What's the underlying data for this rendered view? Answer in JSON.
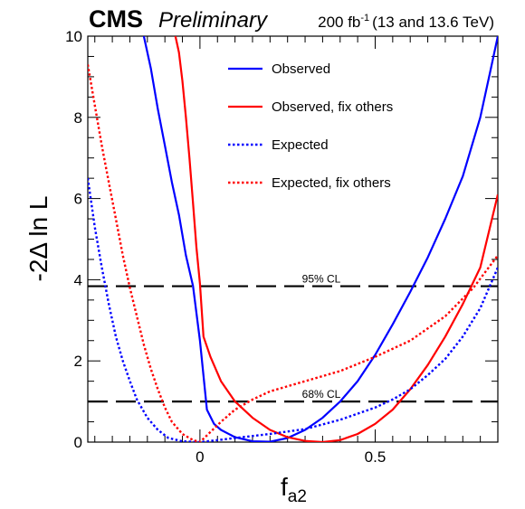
{
  "header": {
    "experiment": "CMS",
    "status": "Preliminary",
    "lumi_value": "200 fb",
    "lumi_exponent": "-1",
    "lumi_energy": "(13 and 13.6 TeV)"
  },
  "chart_data": {
    "type": "line",
    "xlabel_main": "f",
    "xlabel_sub": "a2",
    "ylabel": "-2Δ ln L",
    "xlim": [
      -0.32,
      0.85
    ],
    "ylim": [
      0,
      10
    ],
    "x_ticks": [
      {
        "value": 0,
        "label": "0"
      },
      {
        "value": 0.5,
        "label": "0.5"
      }
    ],
    "y_ticks": [
      {
        "value": 0,
        "label": "0"
      },
      {
        "value": 2,
        "label": "2"
      },
      {
        "value": 4,
        "label": "4"
      },
      {
        "value": 6,
        "label": "6"
      },
      {
        "value": 8,
        "label": "8"
      },
      {
        "value": 10,
        "label": "10"
      }
    ],
    "legend_placement": "top-center",
    "reference_lines": [
      {
        "y": 3.84,
        "label": "95% CL"
      },
      {
        "y": 1.0,
        "label": "68% CL"
      }
    ],
    "series": [
      {
        "name": "Observed",
        "color": "#0000ff",
        "style": "solid",
        "points": [
          [
            -0.16,
            10
          ],
          [
            -0.14,
            9.2
          ],
          [
            -0.12,
            8.2
          ],
          [
            -0.1,
            7.3
          ],
          [
            -0.08,
            6.4
          ],
          [
            -0.06,
            5.6
          ],
          [
            -0.04,
            4.6
          ],
          [
            -0.02,
            3.85
          ],
          [
            0,
            2.5
          ],
          [
            0.02,
            0.8
          ],
          [
            0.04,
            0.45
          ],
          [
            0.06,
            0.3
          ],
          [
            0.1,
            0.12
          ],
          [
            0.15,
            0.02
          ],
          [
            0.2,
            0.01
          ],
          [
            0.25,
            0.1
          ],
          [
            0.3,
            0.3
          ],
          [
            0.35,
            0.6
          ],
          [
            0.4,
            1.0
          ],
          [
            0.45,
            1.5
          ],
          [
            0.5,
            2.15
          ],
          [
            0.55,
            2.9
          ],
          [
            0.6,
            3.7
          ],
          [
            0.65,
            4.55
          ],
          [
            0.7,
            5.5
          ],
          [
            0.75,
            6.55
          ],
          [
            0.8,
            8.0
          ],
          [
            0.83,
            9.2
          ],
          [
            0.85,
            10
          ]
        ]
      },
      {
        "name": "Observed, fix others",
        "color": "#ff0000",
        "style": "solid",
        "points": [
          [
            -0.07,
            10
          ],
          [
            -0.06,
            9.6
          ],
          [
            -0.05,
            8.9
          ],
          [
            -0.04,
            8.0
          ],
          [
            -0.03,
            7.0
          ],
          [
            -0.02,
            5.9
          ],
          [
            -0.01,
            4.8
          ],
          [
            0,
            3.9
          ],
          [
            0.01,
            2.6
          ],
          [
            0.03,
            2.1
          ],
          [
            0.06,
            1.5
          ],
          [
            0.1,
            1.0
          ],
          [
            0.15,
            0.6
          ],
          [
            0.2,
            0.3
          ],
          [
            0.25,
            0.12
          ],
          [
            0.3,
            0.03
          ],
          [
            0.35,
            0.0
          ],
          [
            0.4,
            0.05
          ],
          [
            0.45,
            0.2
          ],
          [
            0.5,
            0.45
          ],
          [
            0.55,
            0.8
          ],
          [
            0.6,
            1.3
          ],
          [
            0.65,
            1.9
          ],
          [
            0.7,
            2.6
          ],
          [
            0.75,
            3.4
          ],
          [
            0.8,
            4.3
          ],
          [
            0.85,
            6.1
          ]
        ]
      },
      {
        "name": "Expected",
        "color": "#0000ff",
        "style": "dotted",
        "points": [
          [
            -0.32,
            6.5
          ],
          [
            -0.3,
            5.3
          ],
          [
            -0.28,
            4.3
          ],
          [
            -0.26,
            3.4
          ],
          [
            -0.24,
            2.6
          ],
          [
            -0.22,
            2.0
          ],
          [
            -0.2,
            1.5
          ],
          [
            -0.18,
            1.05
          ],
          [
            -0.15,
            0.6
          ],
          [
            -0.12,
            0.3
          ],
          [
            -0.09,
            0.1
          ],
          [
            -0.05,
            0.02
          ],
          [
            0,
            0.0
          ],
          [
            0.05,
            0.05
          ],
          [
            0.1,
            0.1
          ],
          [
            0.2,
            0.2
          ],
          [
            0.3,
            0.32
          ],
          [
            0.4,
            0.55
          ],
          [
            0.5,
            0.85
          ],
          [
            0.55,
            1.05
          ],
          [
            0.6,
            1.3
          ],
          [
            0.65,
            1.65
          ],
          [
            0.7,
            2.05
          ],
          [
            0.75,
            2.6
          ],
          [
            0.8,
            3.3
          ],
          [
            0.85,
            4.3
          ]
        ]
      },
      {
        "name": "Expected, fix others",
        "color": "#ff0000",
        "style": "dotted",
        "points": [
          [
            -0.32,
            9.3
          ],
          [
            -0.3,
            8.3
          ],
          [
            -0.28,
            7.3
          ],
          [
            -0.26,
            6.4
          ],
          [
            -0.24,
            5.5
          ],
          [
            -0.22,
            4.6
          ],
          [
            -0.2,
            3.8
          ],
          [
            -0.18,
            3.1
          ],
          [
            -0.16,
            2.4
          ],
          [
            -0.14,
            1.8
          ],
          [
            -0.12,
            1.3
          ],
          [
            -0.1,
            0.85
          ],
          [
            -0.08,
            0.5
          ],
          [
            -0.05,
            0.2
          ],
          [
            -0.02,
            0.05
          ],
          [
            0,
            0.0
          ],
          [
            0.03,
            0.25
          ],
          [
            0.06,
            0.5
          ],
          [
            0.1,
            0.8
          ],
          [
            0.15,
            1.05
          ],
          [
            0.2,
            1.25
          ],
          [
            0.3,
            1.5
          ],
          [
            0.4,
            1.75
          ],
          [
            0.5,
            2.1
          ],
          [
            0.6,
            2.5
          ],
          [
            0.7,
            3.1
          ],
          [
            0.78,
            3.8
          ],
          [
            0.85,
            4.6
          ]
        ]
      }
    ]
  }
}
